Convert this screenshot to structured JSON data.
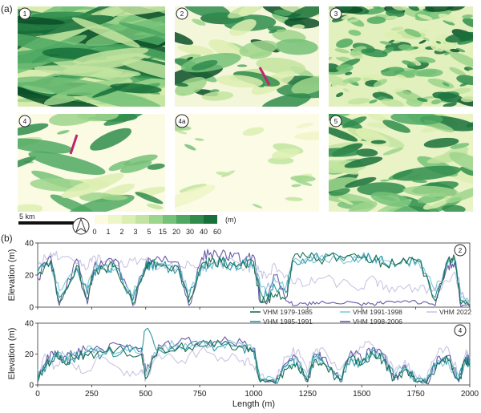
{
  "panel_a_label": "(a)",
  "panel_b_label": "(b)",
  "maps": [
    {
      "id": "1",
      "tone": "dense-ridges"
    },
    {
      "id": "2",
      "tone": "patchy"
    },
    {
      "id": "3",
      "tone": "fine-dense"
    },
    {
      "id": "4",
      "tone": "sparse-ridges"
    },
    {
      "id": "4a",
      "tone": "very-sparse"
    },
    {
      "id": "5",
      "tone": "medium"
    }
  ],
  "scalebar_label": "5 km",
  "north_arrow_icon": "north-arrow-icon",
  "colorbar": {
    "unit": "(m)",
    "ticks": [
      "0",
      "1",
      "2",
      "3",
      "5",
      "15",
      "20",
      "30",
      "40",
      "60"
    ],
    "colors": [
      "#fbfbe0",
      "#eef5c6",
      "#dcefb2",
      "#c2e4a0",
      "#9ed58c",
      "#74c178",
      "#4ea862",
      "#2f8c4c",
      "#17703a",
      "#0b4f28"
    ]
  },
  "transect_color": "#c0266a",
  "chart_data": [
    {
      "type": "line",
      "profile": "2",
      "xlim": [
        0,
        2000
      ],
      "ylim": [
        0,
        40
      ],
      "yticks": [
        "0",
        "20",
        "40"
      ],
      "ylabel": "Elevation (m)",
      "series": [
        {
          "name": "VHM 1979-1985",
          "color": "#1d6f52",
          "x": [
            0,
            60,
            100,
            180,
            230,
            260,
            300,
            360,
            440,
            500,
            520,
            560,
            650,
            700,
            760,
            800,
            850,
            900,
            960,
            1000,
            1030,
            1060,
            1100,
            1150,
            1180,
            1250,
            1300,
            1400,
            1500,
            1560,
            1600,
            1680,
            1760,
            1840,
            1900,
            1930,
            1960,
            2000
          ],
          "y": [
            20,
            29,
            3,
            26,
            5,
            23,
            24,
            26,
            2,
            24,
            26,
            27,
            25,
            3,
            27,
            28,
            28,
            27,
            26,
            28,
            5,
            4,
            8,
            6,
            30,
            31,
            30,
            32,
            31,
            30,
            27,
            28,
            29,
            4,
            30,
            31,
            2,
            1
          ]
        },
        {
          "name": "VHM 1985-1991",
          "color": "#2a98a6",
          "x": [
            0,
            60,
            100,
            180,
            230,
            260,
            300,
            360,
            440,
            500,
            520,
            560,
            650,
            700,
            760,
            800,
            850,
            900,
            960,
            1000,
            1030,
            1060,
            1100,
            1150,
            1180,
            1250,
            1300,
            1400,
            1500,
            1560,
            1600,
            1680,
            1760,
            1840,
            1900,
            1930,
            1960,
            2000
          ],
          "y": [
            22,
            28,
            6,
            24,
            8,
            22,
            25,
            25,
            4,
            25,
            27,
            26,
            24,
            6,
            26,
            27,
            29,
            26,
            27,
            27,
            10,
            7,
            12,
            9,
            29,
            30,
            31,
            31,
            30,
            31,
            28,
            27,
            30,
            6,
            29,
            30,
            4,
            1
          ]
        },
        {
          "name": "VHM 1991-1998",
          "color": "#86c8d8",
          "x": [
            0,
            60,
            100,
            180,
            230,
            260,
            300,
            360,
            440,
            500,
            520,
            560,
            650,
            700,
            760,
            800,
            850,
            900,
            960,
            1000,
            1030,
            1060,
            1100,
            1150,
            1180,
            1250,
            1300,
            1400,
            1500,
            1560,
            1600,
            1680,
            1760,
            1840,
            1900,
            1930,
            1960,
            2000
          ],
          "y": [
            24,
            27,
            10,
            25,
            12,
            24,
            26,
            24,
            7,
            26,
            26,
            27,
            26,
            10,
            25,
            26,
            28,
            25,
            26,
            26,
            14,
            12,
            16,
            13,
            28,
            31,
            30,
            30,
            31,
            30,
            29,
            28,
            29,
            10,
            28,
            29,
            8,
            2
          ]
        },
        {
          "name": "VHM 1998-2006",
          "color": "#6a5aa8",
          "x": [
            0,
            60,
            100,
            180,
            230,
            260,
            300,
            360,
            440,
            500,
            520,
            560,
            650,
            700,
            760,
            800,
            850,
            900,
            960,
            1000,
            1030,
            1060,
            1100,
            1150,
            1180,
            1250,
            1300,
            1400,
            1500,
            1560,
            1600,
            1680,
            1760,
            1840,
            1900,
            1930,
            1960,
            2000
          ],
          "y": [
            18,
            32,
            1,
            30,
            2,
            25,
            27,
            30,
            1,
            27,
            30,
            31,
            28,
            1,
            31,
            34,
            33,
            31,
            30,
            32,
            3,
            2,
            20,
            4,
            1,
            1,
            2,
            2,
            1,
            1,
            2,
            3,
            2,
            1,
            26,
            28,
            0,
            0
          ]
        },
        {
          "name": "VHM 2022",
          "color": "#c9c6e2",
          "x": [
            0,
            60,
            100,
            180,
            230,
            260,
            300,
            360,
            440,
            500,
            520,
            560,
            650,
            700,
            760,
            800,
            850,
            900,
            960,
            1000,
            1030,
            1060,
            1100,
            1150,
            1180,
            1250,
            1300,
            1400,
            1500,
            1560,
            1600,
            1680,
            1760,
            1840,
            1900,
            1930,
            1960,
            2000
          ],
          "y": [
            26,
            34,
            30,
            27,
            24,
            32,
            28,
            26,
            29,
            30,
            25,
            24,
            26,
            28,
            25,
            27,
            26,
            30,
            24,
            26,
            22,
            18,
            26,
            20,
            15,
            14,
            18,
            15,
            12,
            18,
            11,
            13,
            10,
            12,
            16,
            22,
            6,
            3
          ]
        }
      ]
    },
    {
      "type": "line",
      "profile": "4",
      "xlim": [
        0,
        2000
      ],
      "ylim": [
        0,
        40
      ],
      "yticks": [
        "0",
        "20",
        "40"
      ],
      "xticks": [
        "0",
        "250",
        "500",
        "750",
        "1000",
        "1250",
        "1500",
        "1750",
        "2000"
      ],
      "ylabel": "Elevation (m)",
      "xlabel": "Length (m)",
      "series": [
        {
          "name": "VHM 1979-1985",
          "color": "#1d6f52",
          "x": [
            0,
            40,
            80,
            120,
            160,
            220,
            300,
            400,
            480,
            500,
            560,
            650,
            750,
            850,
            950,
            1000,
            1030,
            1100,
            1150,
            1200,
            1250,
            1280,
            1320,
            1400,
            1450,
            1500,
            1550,
            1600,
            1650,
            1700,
            1750,
            1800,
            1850,
            1900,
            1950,
            1980,
            2000
          ],
          "y": [
            2,
            14,
            18,
            15,
            18,
            20,
            21,
            22,
            20,
            4,
            24,
            24,
            25,
            26,
            25,
            22,
            2,
            1,
            10,
            14,
            2,
            16,
            14,
            3,
            18,
            14,
            20,
            16,
            4,
            10,
            2,
            1,
            14,
            16,
            3,
            15,
            12
          ]
        },
        {
          "name": "VHM 1985-1991",
          "color": "#2a98a6",
          "x": [
            0,
            40,
            80,
            120,
            160,
            220,
            300,
            400,
            480,
            500,
            560,
            650,
            750,
            850,
            950,
            1000,
            1030,
            1100,
            1150,
            1200,
            1250,
            1280,
            1320,
            1400,
            1450,
            1500,
            1550,
            1600,
            1650,
            1700,
            1750,
            1800,
            1850,
            1900,
            1950,
            1980,
            2000
          ],
          "y": [
            3,
            12,
            20,
            16,
            17,
            21,
            20,
            23,
            22,
            36,
            23,
            25,
            26,
            25,
            24,
            21,
            3,
            2,
            12,
            15,
            3,
            18,
            15,
            4,
            17,
            13,
            22,
            18,
            5,
            12,
            3,
            2,
            15,
            17,
            4,
            16,
            14
          ]
        },
        {
          "name": "VHM 1991-1998",
          "color": "#86c8d8",
          "x": [
            0,
            40,
            80,
            120,
            160,
            220,
            300,
            400,
            480,
            500,
            560,
            650,
            750,
            850,
            950,
            1000,
            1030,
            1100,
            1150,
            1200,
            1250,
            1280,
            1320,
            1400,
            1450,
            1500,
            1550,
            1600,
            1650,
            1700,
            1750,
            1800,
            1850,
            1900,
            1950,
            1980,
            2000
          ],
          "y": [
            4,
            15,
            19,
            17,
            19,
            22,
            22,
            24,
            21,
            6,
            25,
            26,
            26,
            27,
            26,
            23,
            4,
            3,
            13,
            16,
            5,
            17,
            16,
            6,
            19,
            15,
            21,
            17,
            6,
            11,
            4,
            3,
            16,
            15,
            5,
            14,
            13
          ]
        },
        {
          "name": "VHM 1998-2006",
          "color": "#6a5aa8",
          "x": [
            0,
            40,
            80,
            120,
            160,
            220,
            300,
            400,
            480,
            500,
            560,
            650,
            750,
            850,
            950,
            1000,
            1030,
            1100,
            1150,
            1200,
            1250,
            1280,
            1320,
            1400,
            1450,
            1500,
            1550,
            1600,
            1650,
            1700,
            1750,
            1800,
            1850,
            1900,
            1950,
            1980,
            2000
          ],
          "y": [
            2,
            16,
            22,
            18,
            20,
            23,
            23,
            25,
            24,
            8,
            26,
            27,
            28,
            28,
            27,
            24,
            2,
            1,
            14,
            18,
            2,
            20,
            18,
            2,
            22,
            16,
            24,
            20,
            3,
            13,
            2,
            1,
            18,
            19,
            2,
            18,
            15
          ]
        },
        {
          "name": "VHM 2022",
          "color": "#c9c6e2",
          "x": [
            0,
            40,
            80,
            120,
            160,
            220,
            300,
            400,
            480,
            500,
            560,
            650,
            750,
            850,
            950,
            1000,
            1030,
            1100,
            1150,
            1200,
            1250,
            1280,
            1320,
            1400,
            1450,
            1500,
            1550,
            1600,
            1650,
            1700,
            1750,
            1800,
            1850,
            1900,
            1950,
            1980,
            2000
          ],
          "y": [
            10,
            18,
            12,
            20,
            14,
            8,
            18,
            6,
            10,
            4,
            20,
            14,
            22,
            18,
            16,
            12,
            6,
            4,
            18,
            22,
            8,
            20,
            24,
            10,
            18,
            24,
            26,
            20,
            8,
            16,
            6,
            4,
            20,
            24,
            6,
            20,
            18
          ]
        }
      ]
    }
  ]
}
